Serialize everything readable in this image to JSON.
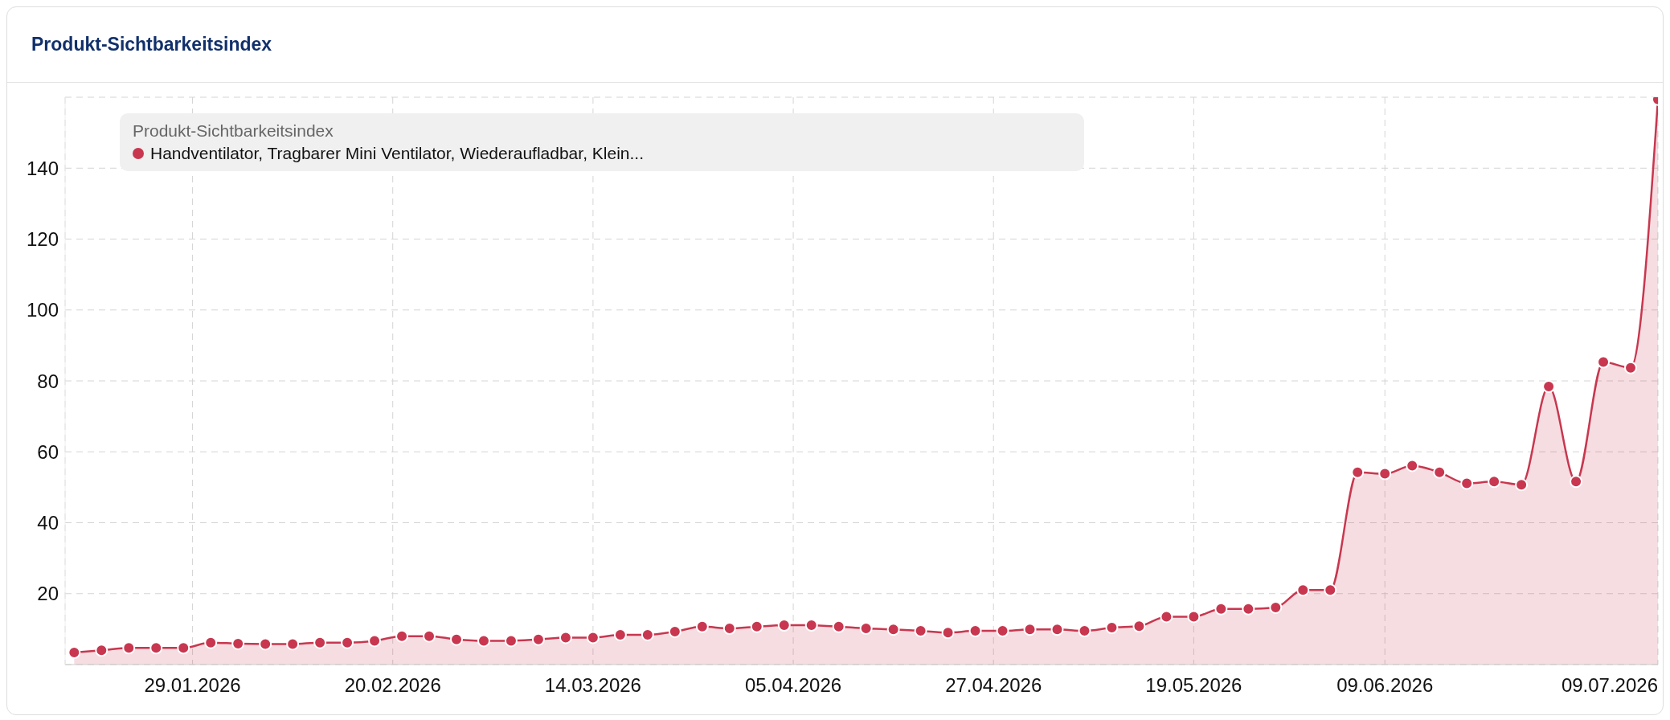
{
  "chart_data": {
    "type": "area",
    "title": "Produkt-Sichtbarkeitsindex",
    "legend_title": "Produkt-Sichtbarkeitsindex",
    "legend": "top left",
    "grid": true,
    "marker": "circle",
    "line_style": "solid",
    "x": [
      "2026-01-16",
      "2026-01-19",
      "2026-01-22",
      "2026-01-25",
      "2026-01-28",
      "2026-01-31",
      "2026-02-03",
      "2026-02-06",
      "2026-02-09",
      "2026-02-12",
      "2026-02-15",
      "2026-02-18",
      "2026-02-21",
      "2026-02-24",
      "2026-02-27",
      "2026-03-02",
      "2026-03-05",
      "2026-03-08",
      "2026-03-11",
      "2026-03-14",
      "2026-03-17",
      "2026-03-20",
      "2026-03-23",
      "2026-03-26",
      "2026-03-29",
      "2026-04-01",
      "2026-04-04",
      "2026-04-07",
      "2026-04-10",
      "2026-04-13",
      "2026-04-16",
      "2026-04-19",
      "2026-04-22",
      "2026-04-25",
      "2026-04-28",
      "2026-05-01",
      "2026-05-04",
      "2026-05-07",
      "2026-05-10",
      "2026-05-13",
      "2026-05-16",
      "2026-05-19",
      "2026-05-22",
      "2026-05-25",
      "2026-05-28",
      "2026-05-31",
      "2026-06-03",
      "2026-06-06",
      "2026-06-09",
      "2026-06-12",
      "2026-06-15",
      "2026-06-18",
      "2026-06-21",
      "2026-06-24",
      "2026-06-27",
      "2026-06-30",
      "2026-07-03",
      "2026-07-06",
      "2026-07-09"
    ],
    "series": [
      {
        "name": "Handventilator, Tragbarer Mini Ventilator, Wiederaufladbar, Klein...",
        "color": "#c8374f",
        "values": [
          3.4,
          4.0,
          4.7,
          4.7,
          4.7,
          6.2,
          5.9,
          5.8,
          5.8,
          6.2,
          6.2,
          6.7,
          8.0,
          8.0,
          7.1,
          6.7,
          6.7,
          7.1,
          7.6,
          7.6,
          8.4,
          8.4,
          9.3,
          10.7,
          10.2,
          10.7,
          11.1,
          11.1,
          10.7,
          10.2,
          9.9,
          9.5,
          9.0,
          9.5,
          9.5,
          9.9,
          9.9,
          9.5,
          10.4,
          10.8,
          13.5,
          13.5,
          15.7,
          15.7,
          16.1,
          21.0,
          21.0,
          54.2,
          53.8,
          56.1,
          54.2,
          51.1,
          51.6,
          50.7,
          78.4,
          51.6,
          85.3,
          83.7,
          159.4
        ]
      }
    ],
    "xlim": [
      "2026-01-15",
      "2026-07-09"
    ],
    "xticks": [
      {
        "value": "2026-01-29",
        "label": "29.01.2026"
      },
      {
        "value": "2026-02-20",
        "label": "20.02.2026"
      },
      {
        "value": "2026-03-14",
        "label": "14.03.2026"
      },
      {
        "value": "2026-04-05",
        "label": "05.04.2026"
      },
      {
        "value": "2026-04-27",
        "label": "27.04.2026"
      },
      {
        "value": "2026-05-19",
        "label": "19.05.2026"
      },
      {
        "value": "2026-06-09",
        "label": "09.06.2026"
      },
      {
        "value": "2026-07-09",
        "label": "09.07.2026"
      }
    ],
    "ylim": [
      0,
      160
    ],
    "yticks": [
      20,
      40,
      60,
      80,
      100,
      120,
      140
    ]
  }
}
